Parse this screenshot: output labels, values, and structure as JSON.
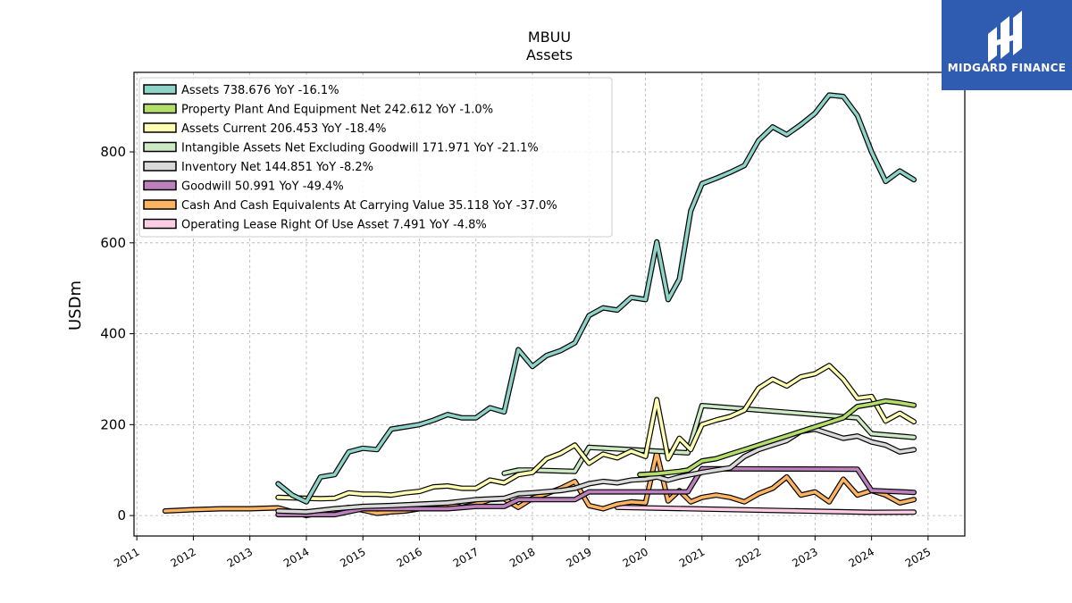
{
  "logo": {
    "text": "MIDGARD FINANCE",
    "bg_color": "#2f5bb0"
  },
  "chart_data": {
    "type": "line",
    "title": "MBUU",
    "subtitle": "Assets",
    "ylabel": "USDm",
    "xlabel": "",
    "xlim": [
      2010.95,
      2025.65
    ],
    "ylim": [
      -45,
      975
    ],
    "yticks": [
      0,
      200,
      400,
      600,
      800
    ],
    "xticks": [
      "2011",
      "2012",
      "2013",
      "2014",
      "2015",
      "2016",
      "2017",
      "2018",
      "2019",
      "2020",
      "2021",
      "2022",
      "2023",
      "2024",
      "2025"
    ],
    "grid": true,
    "legend_position": "top-left",
    "series": [
      {
        "name": "Assets",
        "legend": "Assets  738.676 YoY -16.1%",
        "color": "#8dd3c7",
        "points": [
          [
            2013.5,
            70
          ],
          [
            2013.75,
            45
          ],
          [
            2014.0,
            30
          ],
          [
            2014.25,
            85
          ],
          [
            2014.5,
            90
          ],
          [
            2014.75,
            140
          ],
          [
            2015.0,
            148
          ],
          [
            2015.25,
            145
          ],
          [
            2015.5,
            190
          ],
          [
            2015.75,
            195
          ],
          [
            2016.0,
            200
          ],
          [
            2016.25,
            210
          ],
          [
            2016.5,
            222
          ],
          [
            2016.75,
            215
          ],
          [
            2017.0,
            215
          ],
          [
            2017.25,
            237
          ],
          [
            2017.5,
            228
          ],
          [
            2017.75,
            365
          ],
          [
            2018.0,
            328
          ],
          [
            2018.25,
            352
          ],
          [
            2018.5,
            363
          ],
          [
            2018.75,
            380
          ],
          [
            2019.0,
            440
          ],
          [
            2019.25,
            457
          ],
          [
            2019.5,
            452
          ],
          [
            2019.75,
            480
          ],
          [
            2020.0,
            475
          ],
          [
            2020.2,
            602
          ],
          [
            2020.4,
            475
          ],
          [
            2020.6,
            520
          ],
          [
            2020.8,
            670
          ],
          [
            2021.0,
            730
          ],
          [
            2021.25,
            742
          ],
          [
            2021.5,
            755
          ],
          [
            2021.75,
            770
          ],
          [
            2022.0,
            825
          ],
          [
            2022.25,
            855
          ],
          [
            2022.5,
            838
          ],
          [
            2022.75,
            860
          ],
          [
            2023.0,
            885
          ],
          [
            2023.25,
            925
          ],
          [
            2023.5,
            922
          ],
          [
            2023.75,
            880
          ],
          [
            2024.0,
            800
          ],
          [
            2024.25,
            735
          ],
          [
            2024.5,
            758
          ],
          [
            2024.75,
            738.676
          ]
        ]
      },
      {
        "name": "Property Plant And Equipment Net",
        "legend": "Property Plant And Equipment Net  242.612 YoY -1.0%",
        "color": "#b3de69",
        "points": [
          [
            2019.9,
            90
          ],
          [
            2020.2,
            92
          ],
          [
            2020.6,
            97
          ],
          [
            2020.75,
            100
          ],
          [
            2021.0,
            120
          ],
          [
            2021.25,
            125
          ],
          [
            2021.5,
            135
          ],
          [
            2021.75,
            145
          ],
          [
            2022.0,
            155
          ],
          [
            2022.25,
            165
          ],
          [
            2022.5,
            175
          ],
          [
            2022.75,
            185
          ],
          [
            2023.0,
            195
          ],
          [
            2023.25,
            205
          ],
          [
            2023.5,
            215
          ],
          [
            2023.75,
            240
          ],
          [
            2024.0,
            245
          ],
          [
            2024.25,
            252
          ],
          [
            2024.5,
            248
          ],
          [
            2024.75,
            242.612
          ]
        ]
      },
      {
        "name": "Assets Current",
        "legend": "Assets Current  206.453 YoY -18.4%",
        "color": "#ffffb3",
        "points": [
          [
            2013.5,
            40
          ],
          [
            2013.75,
            39
          ],
          [
            2014.0,
            38
          ],
          [
            2014.25,
            37
          ],
          [
            2014.5,
            38
          ],
          [
            2014.75,
            50
          ],
          [
            2015.0,
            47
          ],
          [
            2015.25,
            47
          ],
          [
            2015.5,
            45
          ],
          [
            2015.75,
            50
          ],
          [
            2016.0,
            53
          ],
          [
            2016.25,
            63
          ],
          [
            2016.5,
            65
          ],
          [
            2016.75,
            60
          ],
          [
            2017.0,
            60
          ],
          [
            2017.25,
            78
          ],
          [
            2017.5,
            72
          ],
          [
            2017.75,
            90
          ],
          [
            2018.0,
            95
          ],
          [
            2018.25,
            125
          ],
          [
            2018.5,
            137
          ],
          [
            2018.75,
            155
          ],
          [
            2019.0,
            115
          ],
          [
            2019.25,
            135
          ],
          [
            2019.5,
            127
          ],
          [
            2019.75,
            142
          ],
          [
            2020.0,
            130
          ],
          [
            2020.2,
            255
          ],
          [
            2020.4,
            125
          ],
          [
            2020.6,
            170
          ],
          [
            2020.8,
            145
          ],
          [
            2021.0,
            200
          ],
          [
            2021.25,
            210
          ],
          [
            2021.5,
            218
          ],
          [
            2021.75,
            232
          ],
          [
            2022.0,
            280
          ],
          [
            2022.25,
            300
          ],
          [
            2022.5,
            285
          ],
          [
            2022.75,
            305
          ],
          [
            2023.0,
            312
          ],
          [
            2023.25,
            330
          ],
          [
            2023.5,
            300
          ],
          [
            2023.75,
            258
          ],
          [
            2024.0,
            262
          ],
          [
            2024.25,
            208
          ],
          [
            2024.5,
            225
          ],
          [
            2024.75,
            206.453
          ]
        ]
      },
      {
        "name": "Intangible Assets Net Excluding Goodwill",
        "legend": "Intangible Assets Net Excluding Goodwill  171.971 YoY -21.1%",
        "color": "#ccebc5",
        "points": [
          [
            2017.5,
            93
          ],
          [
            2017.75,
            100
          ],
          [
            2018.0,
            100
          ],
          [
            2018.5,
            98
          ],
          [
            2018.75,
            97
          ],
          [
            2019.0,
            150
          ],
          [
            2020.75,
            138
          ],
          [
            2021.0,
            242
          ],
          [
            2023.75,
            215
          ],
          [
            2024.0,
            180
          ],
          [
            2024.75,
            171.971
          ]
        ]
      },
      {
        "name": "Inventory Net",
        "legend": "Inventory Net  144.851 YoY -8.2%",
        "color": "#d9d9d9",
        "points": [
          [
            2013.5,
            10
          ],
          [
            2014.0,
            8
          ],
          [
            2014.5,
            15
          ],
          [
            2015.0,
            20
          ],
          [
            2015.5,
            22
          ],
          [
            2016.0,
            25
          ],
          [
            2016.5,
            28
          ],
          [
            2017.0,
            35
          ],
          [
            2017.5,
            38
          ],
          [
            2017.75,
            48
          ],
          [
            2018.0,
            50
          ],
          [
            2018.5,
            55
          ],
          [
            2018.75,
            60
          ],
          [
            2019.0,
            70
          ],
          [
            2019.25,
            75
          ],
          [
            2019.5,
            72
          ],
          [
            2019.75,
            78
          ],
          [
            2020.0,
            80
          ],
          [
            2020.2,
            85
          ],
          [
            2020.4,
            78
          ],
          [
            2020.6,
            85
          ],
          [
            2020.8,
            90
          ],
          [
            2021.0,
            95
          ],
          [
            2021.25,
            100
          ],
          [
            2021.5,
            105
          ],
          [
            2021.75,
            130
          ],
          [
            2022.0,
            145
          ],
          [
            2022.25,
            155
          ],
          [
            2022.5,
            165
          ],
          [
            2022.75,
            185
          ],
          [
            2023.0,
            190
          ],
          [
            2023.25,
            180
          ],
          [
            2023.5,
            170
          ],
          [
            2023.75,
            175
          ],
          [
            2024.0,
            162
          ],
          [
            2024.25,
            155
          ],
          [
            2024.5,
            140
          ],
          [
            2024.75,
            144.851
          ]
        ]
      },
      {
        "name": "Goodwill",
        "legend": "Goodwill  50.991 YoY -49.4%",
        "color": "#bc80bd",
        "points": [
          [
            2013.5,
            2
          ],
          [
            2014.5,
            2
          ],
          [
            2015.0,
            15
          ],
          [
            2015.5,
            15
          ],
          [
            2016.0,
            15
          ],
          [
            2016.5,
            15
          ],
          [
            2017.0,
            20
          ],
          [
            2017.5,
            20
          ],
          [
            2017.75,
            35
          ],
          [
            2018.75,
            35
          ],
          [
            2019.0,
            52
          ],
          [
            2020.75,
            52
          ],
          [
            2021.0,
            103
          ],
          [
            2023.75,
            102
          ],
          [
            2024.0,
            55
          ],
          [
            2024.75,
            50.991
          ]
        ]
      },
      {
        "name": "Cash And Cash Equivalents At Carrying Value",
        "legend": "Cash And Cash Equivalents At Carrying Value  35.118 YoY -37.0%",
        "color": "#fdb462",
        "points": [
          [
            2011.5,
            10
          ],
          [
            2012.0,
            13
          ],
          [
            2012.5,
            15
          ],
          [
            2013.0,
            15
          ],
          [
            2013.5,
            17
          ],
          [
            2014.0,
            0
          ],
          [
            2014.5,
            12
          ],
          [
            2014.75,
            18
          ],
          [
            2015.0,
            12
          ],
          [
            2015.25,
            5
          ],
          [
            2015.5,
            8
          ],
          [
            2015.75,
            10
          ],
          [
            2016.0,
            15
          ],
          [
            2016.25,
            18
          ],
          [
            2016.5,
            25
          ],
          [
            2016.75,
            18
          ],
          [
            2017.0,
            25
          ],
          [
            2017.25,
            35
          ],
          [
            2017.5,
            37
          ],
          [
            2017.75,
            18
          ],
          [
            2018.0,
            38
          ],
          [
            2018.25,
            48
          ],
          [
            2018.5,
            60
          ],
          [
            2018.75,
            75
          ],
          [
            2019.0,
            22
          ],
          [
            2019.25,
            15
          ],
          [
            2019.5,
            25
          ],
          [
            2019.75,
            30
          ],
          [
            2020.0,
            28
          ],
          [
            2020.2,
            138
          ],
          [
            2020.4,
            32
          ],
          [
            2020.6,
            55
          ],
          [
            2020.8,
            30
          ],
          [
            2021.0,
            40
          ],
          [
            2021.25,
            45
          ],
          [
            2021.5,
            40
          ],
          [
            2021.75,
            30
          ],
          [
            2022.0,
            48
          ],
          [
            2022.25,
            60
          ],
          [
            2022.5,
            85
          ],
          [
            2022.75,
            45
          ],
          [
            2023.0,
            52
          ],
          [
            2023.25,
            30
          ],
          [
            2023.5,
            80
          ],
          [
            2023.75,
            45
          ],
          [
            2024.0,
            55
          ],
          [
            2024.25,
            45
          ],
          [
            2024.5,
            28
          ],
          [
            2024.75,
            35.118
          ]
        ]
      },
      {
        "name": "Operating Lease Right Of Use Asset",
        "legend": "Operating Lease Right Of Use Asset  7.491 YoY -4.8%",
        "color": "#fccde5",
        "points": [
          [
            2019.5,
            18
          ],
          [
            2024.0,
            7
          ],
          [
            2024.75,
            7.491
          ]
        ]
      }
    ]
  }
}
